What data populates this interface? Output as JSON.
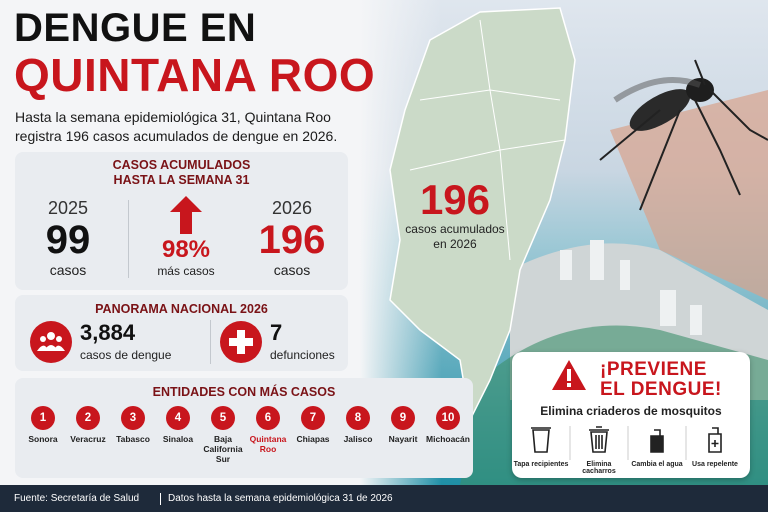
{
  "header": {
    "title_line1": "DENGUE EN",
    "title_line2": "QUINTANA ROO",
    "subtitle": "Hasta la semana epidemiológica 31, Quintana Roo registra 196 casos acumulados de dengue en 2026."
  },
  "cumulative": {
    "title": [
      "CASOS ACUMULADOS",
      "HASTA LA SEMANA 31"
    ],
    "year_a": {
      "year": "2025",
      "count": "99",
      "unit": "casos"
    },
    "change": {
      "percent": "98%",
      "label": "más casos"
    },
    "year_b": {
      "year": "2026",
      "count": "196",
      "unit": "casos"
    }
  },
  "map": {
    "count": "196",
    "label": [
      "casos acumulados",
      "en 2026"
    ]
  },
  "national": {
    "title": "PANORAMA NACIONAL 2026",
    "cases": {
      "count": "3,884",
      "label": "casos de dengue"
    },
    "deaths": {
      "count": "7",
      "label": "defunciones"
    }
  },
  "ranking": {
    "title": "ENTIDADES CON MÁS CASOS",
    "entries": [
      {
        "rank": "1",
        "state": "Sonora"
      },
      {
        "rank": "2",
        "state": "Veracruz"
      },
      {
        "rank": "3",
        "state": "Tabasco"
      },
      {
        "rank": "4",
        "state": "Sinaloa"
      },
      {
        "rank": "5",
        "state": "Baja California Sur"
      },
      {
        "rank": "6",
        "state": "Quintana Roo"
      },
      {
        "rank": "7",
        "state": "Chiapas"
      },
      {
        "rank": "8",
        "state": "Jalisco"
      },
      {
        "rank": "9",
        "state": "Nayarit"
      },
      {
        "rank": "10",
        "state": "Michoacán"
      }
    ]
  },
  "prevention": {
    "title": [
      "¡PREVIENE",
      "EL DENGUE!"
    ],
    "subtitle": "Elimina criaderos de mosquitos",
    "actions": [
      "Tapa recipientes",
      "Elimina cacharros",
      "Cambia el agua",
      "Usa repelente"
    ]
  },
  "footer": {
    "source": "Fuente: Secretaría de Salud",
    "note": "Datos hasta la semana epidemiológica 31 de 2026"
  }
}
